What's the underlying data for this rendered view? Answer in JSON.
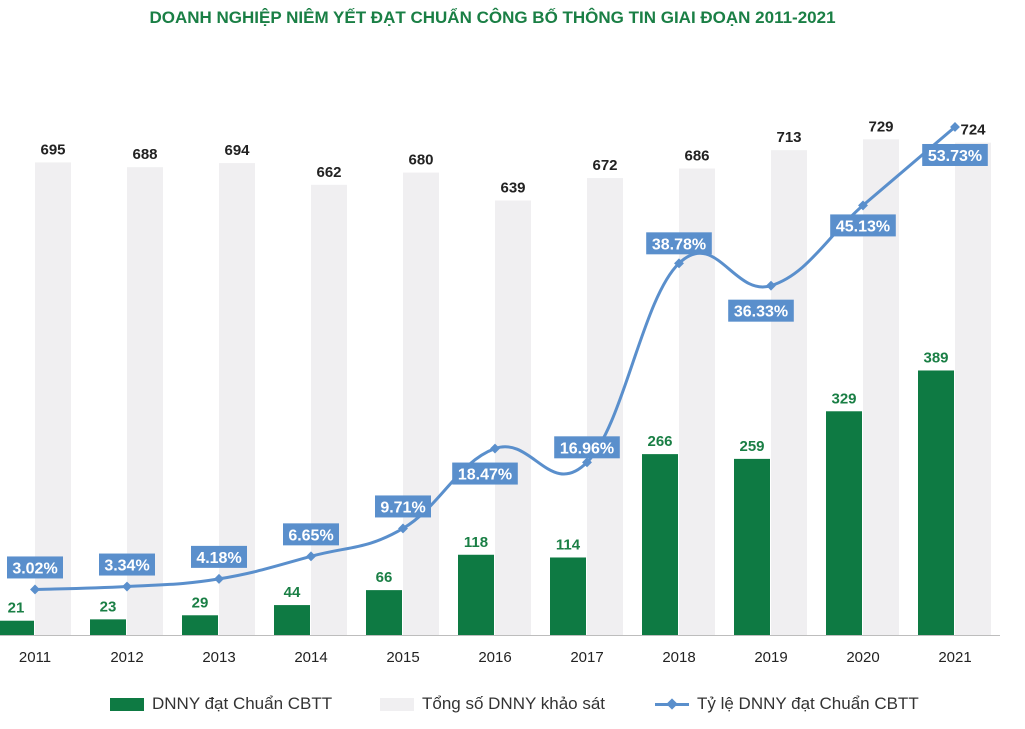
{
  "title": "DOANH NGHIỆP NIÊM YẾT ĐẠT CHUẨN CÔNG BỐ THÔNG TIN GIAI ĐOẠN 2011-2021",
  "chart_data": {
    "type": "bar",
    "categories": [
      "2011",
      "2012",
      "2013",
      "2014",
      "2015",
      "2016",
      "2017",
      "2018",
      "2019",
      "2020",
      "2021"
    ],
    "series": [
      {
        "name": "DNNY đạt Chuẩn CBTT",
        "type": "bar",
        "color": "#0e7a43",
        "values": [
          21,
          23,
          29,
          44,
          66,
          118,
          114,
          266,
          259,
          329,
          389
        ]
      },
      {
        "name": "Tổng số DNNY khảo sát",
        "type": "bar",
        "color": "#f0eff1",
        "values": [
          695,
          688,
          694,
          662,
          680,
          639,
          672,
          686,
          713,
          729,
          724
        ]
      },
      {
        "name": "Tỷ lệ DNNY đạt Chuẩn CBTT",
        "type": "line",
        "color": "#5a8fcc",
        "unit": "%",
        "values": [
          3.02,
          3.34,
          4.18,
          6.65,
          9.71,
          18.47,
          16.96,
          38.78,
          36.33,
          45.13,
          53.73
        ],
        "labels": [
          "3.02%",
          "3.34%",
          "4.18%",
          "6.65%",
          "9.71%",
          "18.47%",
          "16.96%",
          "38.78%",
          "36.33%",
          "45.13%",
          "53.73%"
        ]
      }
    ],
    "legend_position": "bottom",
    "grid": false,
    "colors": {
      "green_label": "#1a7f45",
      "black_label": "#222222",
      "line_label_bg": "#5a8fcc"
    }
  },
  "legend": {
    "green": "DNNY đạt Chuẩn CBTT",
    "gray": "Tổng số DNNY khảo sát",
    "line": "Tỷ lệ DNNY đạt Chuẩn CBTT"
  }
}
